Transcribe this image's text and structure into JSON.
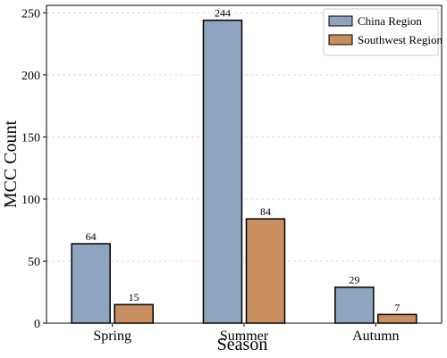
{
  "chart_data": {
    "type": "bar",
    "categories": [
      "Spring",
      "Summer",
      "Autumn"
    ],
    "series": [
      {
        "name": "China Region",
        "color": "#8fa5bf",
        "values": [
          64,
          244,
          29
        ]
      },
      {
        "name": "Southwest Region",
        "color": "#c98e5f",
        "values": [
          15,
          84,
          7
        ]
      }
    ],
    "xlabel": "Season",
    "ylabel": "MCC Count",
    "ylim": [
      0,
      256
    ],
    "yticks": [
      0,
      50,
      100,
      150,
      200,
      250
    ],
    "grid": true,
    "legend": "upper right"
  }
}
